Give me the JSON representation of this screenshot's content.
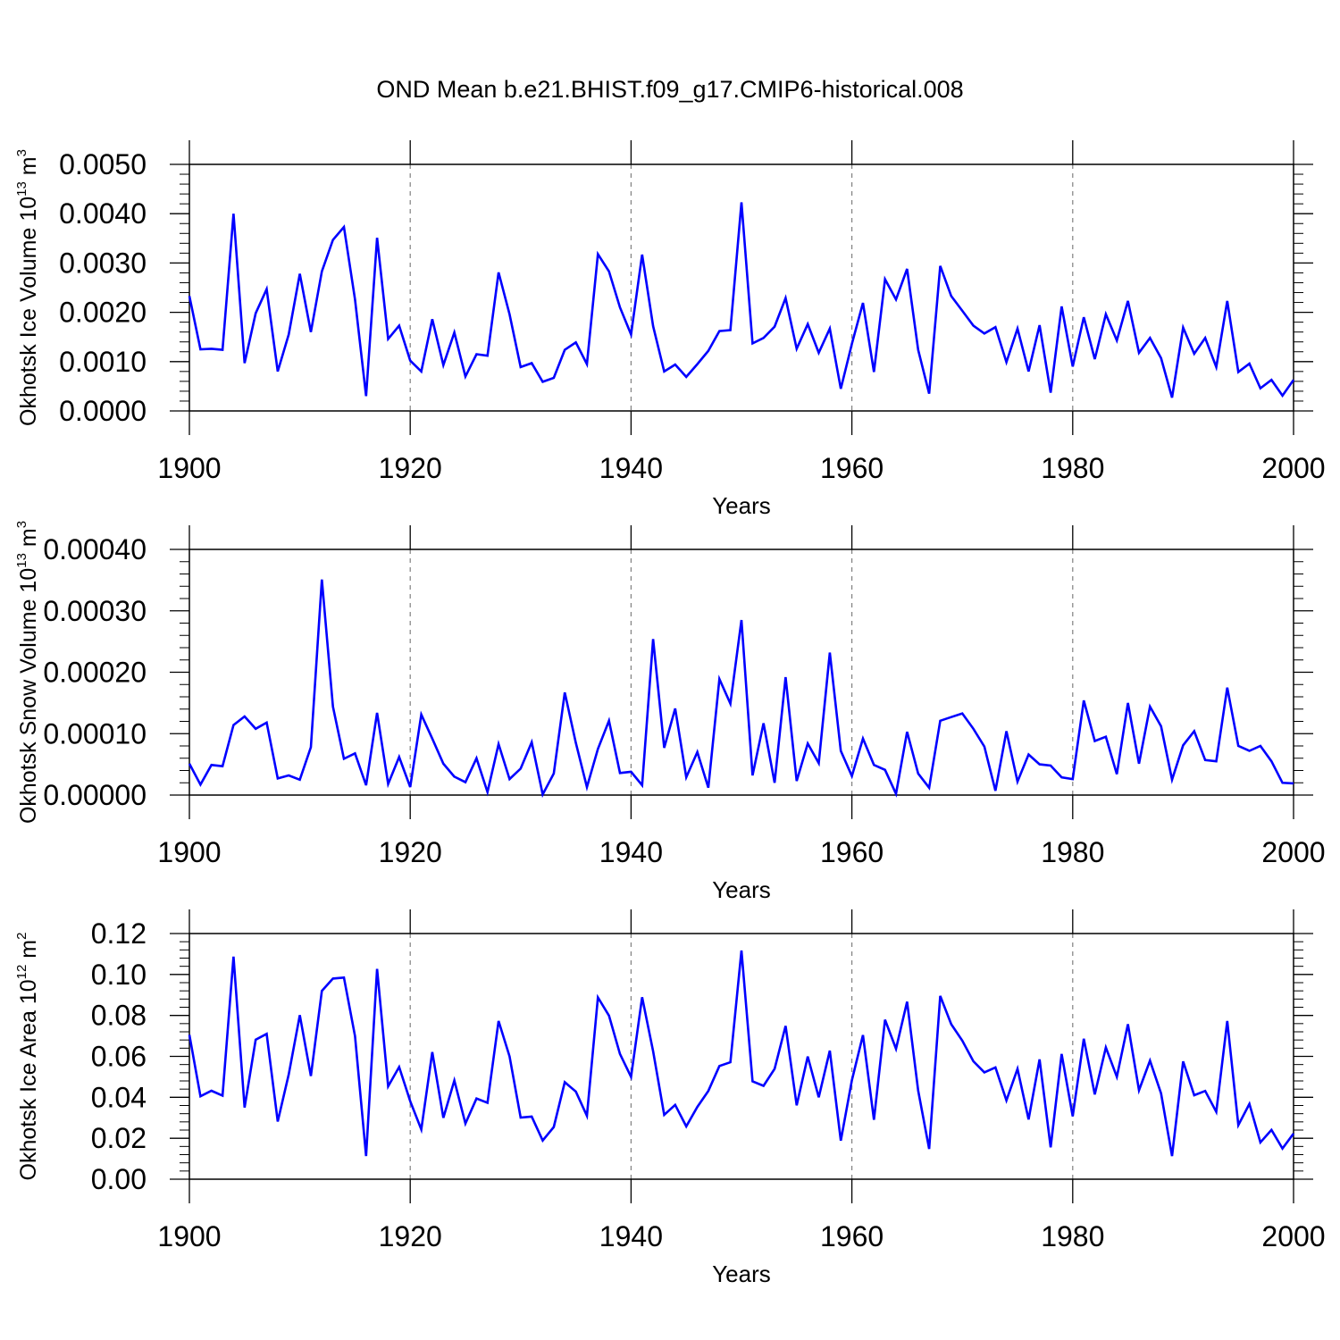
{
  "figure": {
    "title": "OND Mean b.e21.BHIST.f09_g17.CMIP6-historical.008"
  },
  "chart_data": [
    {
      "type": "line",
      "title": "OND Mean b.e21.BHIST.f09_g17.CMIP6-historical.008",
      "xlabel": "Years",
      "ylabel": {
        "pre": "Okhotsk Ice Volume 10",
        "exp": "13",
        "unit": " m",
        "unit_exp": "3"
      },
      "xlim": [
        1900,
        2000
      ],
      "ylim": [
        0,
        0.005
      ],
      "xticks": [
        "1900",
        "1920",
        "1940",
        "1960",
        "1980",
        "2000"
      ],
      "yticks": [
        "0.0000",
        "0.0010",
        "0.0020",
        "0.0030",
        "0.0040",
        "0.0050"
      ],
      "ytick_values": [
        0,
        0.001,
        0.002,
        0.003,
        0.004,
        0.005
      ],
      "grid": "vertical dashed at major x ticks",
      "series": [
        {
          "name": "Okhotsk Ice Volume",
          "color": "#0000ff",
          "x_start": 1900,
          "values": [
            0.00233,
            0.00125,
            0.00126,
            0.00124,
            0.004,
            0.00097,
            0.00198,
            0.00247,
            0.0008,
            0.00155,
            0.00278,
            0.0016,
            0.00283,
            0.00347,
            0.00373,
            0.00226,
            0.0003,
            0.00351,
            0.00146,
            0.00173,
            0.00102,
            0.0008,
            0.00186,
            0.00093,
            0.00159,
            0.0007,
            0.00115,
            0.00112,
            0.00281,
            0.00196,
            0.00089,
            0.00097,
            0.00059,
            0.00067,
            0.00124,
            0.00139,
            0.00095,
            0.00318,
            0.00283,
            0.0021,
            0.00155,
            0.00317,
            0.00172,
            0.0008,
            0.00094,
            0.00069,
            0.00095,
            0.00122,
            0.00162,
            0.00164,
            0.00423,
            0.00137,
            0.00148,
            0.00171,
            0.00229,
            0.00126,
            0.00176,
            0.00118,
            0.00167,
            0.00045,
            0.00136,
            0.00219,
            0.00079,
            0.00267,
            0.00226,
            0.00288,
            0.00124,
            0.00035,
            0.00294,
            0.00233,
            0.00203,
            0.00173,
            0.00157,
            0.0017,
            0.00099,
            0.00167,
            0.0008,
            0.00174,
            0.00037,
            0.00212,
            0.0009,
            0.0019,
            0.00105,
            0.00196,
            0.00143,
            0.00223,
            0.00118,
            0.00148,
            0.00107,
            0.00027,
            0.00169,
            0.00116,
            0.00148,
            0.00089,
            0.00223,
            0.00079,
            0.00096,
            0.00046,
            0.00063,
            0.00031,
            0.00063
          ]
        }
      ]
    },
    {
      "type": "line",
      "xlabel": "Years",
      "ylabel": {
        "pre": "Okhotsk Snow Volume 10",
        "exp": "13",
        "unit": " m",
        "unit_exp": "3"
      },
      "xlim": [
        1900,
        2000
      ],
      "ylim": [
        0,
        0.0004
      ],
      "xticks": [
        "1900",
        "1920",
        "1940",
        "1960",
        "1980",
        "2000"
      ],
      "yticks": [
        "0.00000",
        "0.00010",
        "0.00020",
        "0.00030",
        "0.00040"
      ],
      "ytick_values": [
        0,
        0.0001,
        0.0002,
        0.0003,
        0.0004
      ],
      "grid": "vertical dashed at major x ticks",
      "series": [
        {
          "name": "Okhotsk Snow Volume",
          "color": "#0000ff",
          "x_start": 1900,
          "values": [
            5.1e-05,
            1.7e-05,
            4.9e-05,
            4.7e-05,
            0.000114,
            0.000128,
            0.000108,
            0.000118,
            2.7e-05,
            3.2e-05,
            2.5e-05,
            7.8e-05,
            0.000351,
            0.000144,
            5.9e-05,
            6.8e-05,
            1.6e-05,
            0.000134,
            1.8e-05,
            6.2e-05,
            1.3e-05,
            0.000131,
            9.2e-05,
            5.1e-05,
            3e-05,
            2.1e-05,
            6e-05,
            5e-06,
            8.3e-05,
            2.6e-05,
            4.3e-05,
            8.6e-05,
            1e-06,
            3.5e-05,
            0.000167,
            8.5e-05,
            1.3e-05,
            7.5e-05,
            0.000121,
            3.6e-05,
            3.8e-05,
            1.6e-05,
            0.000254,
            7.7e-05,
            0.000141,
            2.9e-05,
            7e-05,
            1.2e-05,
            0.000189,
            0.000149,
            0.000285,
            3.2e-05,
            0.000117,
            2e-05,
            0.000192,
            2.3e-05,
            8.4e-05,
            5.2e-05,
            0.000232,
            7.2e-05,
            3.1e-05,
            9.2e-05,
            4.9e-05,
            4.1e-05,
            2e-06,
            0.000103,
            3.5e-05,
            1.2e-05,
            0.000121,
            0.000127,
            0.000133,
            0.000108,
            7.9e-05,
            7e-06,
            0.000104,
            2.2e-05,
            6.6e-05,
            5e-05,
            4.8e-05,
            2.9e-05,
            2.6e-05,
            0.000154,
            8.8e-05,
            9.5e-05,
            3.4e-05,
            0.00015,
            5.1e-05,
            0.000144,
            0.000112,
            2.5e-05,
            8.1e-05,
            0.000104,
            5.7e-05,
            5.5e-05,
            0.000175,
            8e-05,
            7.2e-05,
            8e-05,
            5.5e-05,
            2e-05,
            1.9e-05
          ]
        }
      ]
    },
    {
      "type": "line",
      "xlabel": "Years",
      "ylabel": {
        "pre": "Okhotsk Ice Area 10",
        "exp": "12",
        "unit": " m",
        "unit_exp": "2"
      },
      "xlim": [
        1900,
        2000
      ],
      "ylim": [
        0,
        0.12
      ],
      "xticks": [
        "1900",
        "1920",
        "1940",
        "1960",
        "1980",
        "2000"
      ],
      "yticks": [
        "0.00",
        "0.02",
        "0.04",
        "0.06",
        "0.08",
        "0.10",
        "0.12"
      ],
      "ytick_values": [
        0,
        0.02,
        0.04,
        0.06,
        0.08,
        0.1,
        0.12
      ],
      "grid": "vertical dashed at major x ticks",
      "series": [
        {
          "name": "Okhotsk Ice Area",
          "color": "#0000ff",
          "x_start": 1900,
          "values": [
            0.0705,
            0.0405,
            0.0432,
            0.0408,
            0.1087,
            0.035,
            0.0681,
            0.071,
            0.0282,
            0.0512,
            0.0801,
            0.0504,
            0.092,
            0.098,
            0.0985,
            0.0699,
            0.0113,
            0.1027,
            0.0454,
            0.0548,
            0.0381,
            0.0243,
            0.0621,
            0.03,
            0.0482,
            0.0272,
            0.0394,
            0.0373,
            0.0773,
            0.06,
            0.0301,
            0.0306,
            0.0189,
            0.0255,
            0.0474,
            0.0428,
            0.031,
            0.0888,
            0.0799,
            0.0612,
            0.05,
            0.0889,
            0.0625,
            0.0314,
            0.0363,
            0.0258,
            0.0353,
            0.0431,
            0.0553,
            0.0571,
            0.1117,
            0.0478,
            0.0456,
            0.0539,
            0.0749,
            0.0361,
            0.0599,
            0.04,
            0.0628,
            0.0188,
            0.0483,
            0.0704,
            0.029,
            0.0779,
            0.0637,
            0.0867,
            0.0433,
            0.0148,
            0.0895,
            0.0757,
            0.0677,
            0.0576,
            0.0522,
            0.0546,
            0.0385,
            0.0539,
            0.0292,
            0.0585,
            0.0156,
            0.0612,
            0.0307,
            0.0686,
            0.0414,
            0.0643,
            0.05,
            0.0757,
            0.0434,
            0.0579,
            0.0419,
            0.0113,
            0.0575,
            0.041,
            0.0431,
            0.0329,
            0.0773,
            0.0264,
            0.0368,
            0.018,
            0.0241,
            0.015,
            0.0223
          ]
        }
      ]
    }
  ]
}
